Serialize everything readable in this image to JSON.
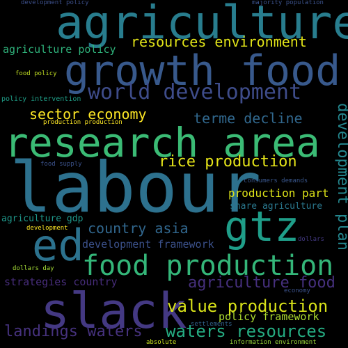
{
  "words": [
    {
      "text": "labour",
      "color": "#2d718e"
    },
    {
      "text": "research area",
      "color": "#3bbb75"
    },
    {
      "text": "growth food",
      "color": "#38598c"
    },
    {
      "text": "agriculture",
      "color": "#287d8e"
    },
    {
      "text": "slack",
      "color": "#443983"
    },
    {
      "text": "gtz",
      "color": "#1f9e89"
    },
    {
      "text": "ed",
      "color": "#2c728e"
    },
    {
      "text": "food production",
      "color": "#34b679"
    },
    {
      "text": "world development",
      "color": "#3e4c8a"
    },
    {
      "text": "resources environment",
      "color": "#e2e418"
    },
    {
      "text": "agriculture food",
      "color": "#46307e"
    },
    {
      "text": "value production",
      "color": "#d8e219"
    },
    {
      "text": "waters resources",
      "color": "#25ac82"
    },
    {
      "text": "landings waters",
      "color": "#46327e"
    },
    {
      "text": "rice production",
      "color": "#e5e419"
    },
    {
      "text": "sector economy",
      "color": "#fde725"
    },
    {
      "text": "terme decline",
      "color": "#31688e"
    },
    {
      "text": "development plan",
      "color": "#24878e"
    },
    {
      "text": "country asia",
      "color": "#31678e"
    },
    {
      "text": "production part",
      "color": "#dde318"
    },
    {
      "text": "share agriculture",
      "color": "#2a788e"
    },
    {
      "text": "development framework",
      "color": "#3b518b"
    },
    {
      "text": "strategies country",
      "color": "#472d7b"
    },
    {
      "text": "policy framework",
      "color": "#addc30"
    },
    {
      "text": "agriculture policy",
      "color": "#2fb47c"
    },
    {
      "text": "agriculture gdp",
      "color": "#1f988b"
    },
    {
      "text": "policy intervention",
      "color": "#1f9f88"
    },
    {
      "text": "food policy",
      "color": "#c2df23"
    },
    {
      "text": "production production",
      "color": "#fde725"
    },
    {
      "text": "food supply",
      "color": "#3b528b"
    },
    {
      "text": "consumers demands",
      "color": "#39568c"
    },
    {
      "text": "development",
      "color": "#fde725"
    },
    {
      "text": "dollars",
      "color": "#443a83"
    },
    {
      "text": "dollars day",
      "color": "#a5db36"
    },
    {
      "text": "economy",
      "color": "#3b528b"
    },
    {
      "text": "settlements",
      "color": "#32648e"
    },
    {
      "text": "absolute",
      "color": "#c8e020"
    },
    {
      "text": "information environment",
      "color": "#9bd93c"
    },
    {
      "text": "development policy",
      "color": "#3c4f8a"
    },
    {
      "text": "majority population",
      "color": "#3b528b"
    }
  ]
}
